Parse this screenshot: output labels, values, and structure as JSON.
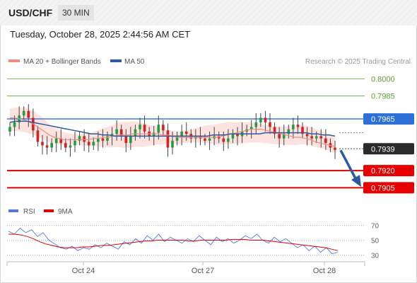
{
  "header": {
    "pair": "USD/CHF",
    "timeframe": "30 MIN"
  },
  "datetime": "Tuesday, October 28, 2025 2:44:56 AM CET",
  "legend": [
    {
      "label": "MA 20 + Bollinger Bands",
      "color": "#f08c80"
    },
    {
      "label": "MA 50",
      "color": "#2c5aa0"
    }
  ],
  "credit": "Research © 2025 Trading Central",
  "chart_data": {
    "type": "line",
    "ylim": [
      0.7896,
      0.8007
    ],
    "x_ticks": [
      "Oct 24",
      "Oct 27",
      "Oct 28"
    ],
    "levels": [
      {
        "value": "0.8000",
        "kind": "resistance",
        "color": "#5aa02c",
        "style": "thin"
      },
      {
        "value": "0.7985",
        "kind": "resistance",
        "color": "#5aa02c",
        "style": "thin"
      },
      {
        "value": "0.7965",
        "kind": "pivot",
        "color": "#2c6fd6",
        "style": "thick"
      },
      {
        "value": "0.7920",
        "kind": "support",
        "color": "#e00000",
        "style": "thick"
      },
      {
        "value": "0.7905",
        "kind": "support",
        "color": "#e00000",
        "style": "thick"
      }
    ],
    "last_price": "0.7939",
    "forecast": {
      "from": 0.7939,
      "to": 0.7907,
      "color": "#2a5aa0"
    },
    "close_series": [
      0.7958,
      0.7962,
      0.7968,
      0.7972,
      0.7966,
      0.7955,
      0.7945,
      0.7942,
      0.794,
      0.7944,
      0.7948,
      0.7944,
      0.794,
      0.7942,
      0.7946,
      0.795,
      0.7945,
      0.7942,
      0.7945,
      0.7948,
      0.7946,
      0.795,
      0.7952,
      0.7956,
      0.795,
      0.7944,
      0.795,
      0.7956,
      0.796,
      0.7954,
      0.795,
      0.7953,
      0.796,
      0.7955,
      0.794,
      0.7946,
      0.795,
      0.7954,
      0.7952,
      0.7948,
      0.795,
      0.7948,
      0.7946,
      0.7948,
      0.795,
      0.7948,
      0.7945,
      0.7948,
      0.7952,
      0.795,
      0.7954,
      0.7956,
      0.7958,
      0.7962,
      0.7966,
      0.7962,
      0.7958,
      0.7952,
      0.7948,
      0.7952,
      0.7956,
      0.796,
      0.7958,
      0.7952,
      0.795,
      0.7948,
      0.795,
      0.7948,
      0.7944,
      0.794,
      0.7938
    ],
    "ma20": [
      0.7966,
      0.7966,
      0.7965,
      0.7964,
      0.7962,
      0.796,
      0.7957,
      0.7954,
      0.7951,
      0.7949,
      0.7948,
      0.7947,
      0.7947,
      0.7947,
      0.7947,
      0.7947,
      0.7947,
      0.7948,
      0.7948,
      0.7949,
      0.7949,
      0.795,
      0.7951,
      0.7951,
      0.7951,
      0.7952,
      0.7952,
      0.7952,
      0.7952,
      0.7952,
      0.7952,
      0.7951,
      0.7951,
      0.795,
      0.7949,
      0.7949,
      0.7949,
      0.7949,
      0.7949,
      0.7949,
      0.7949,
      0.7949,
      0.7949,
      0.795,
      0.7951,
      0.7952,
      0.7953,
      0.7954,
      0.7955,
      0.7956,
      0.7956,
      0.7956,
      0.7955,
      0.7954,
      0.7953,
      0.7952,
      0.7951,
      0.795,
      0.7949,
      0.7949,
      0.7948,
      0.7947,
      0.7945,
      0.7944,
      0.7943,
      0.7942,
      0.7941
    ],
    "ma50": [
      0.7962,
      0.7963,
      0.7963,
      0.7963,
      0.7962,
      0.7961,
      0.796,
      0.7959,
      0.7958,
      0.7957,
      0.7956,
      0.7955,
      0.7954,
      0.7953,
      0.7952,
      0.7952,
      0.7951,
      0.7951,
      0.795,
      0.795,
      0.795,
      0.795,
      0.795,
      0.795,
      0.795,
      0.795,
      0.795,
      0.795,
      0.795,
      0.795,
      0.795,
      0.795,
      0.795,
      0.795,
      0.795,
      0.7951,
      0.7951,
      0.7951,
      0.7952,
      0.7952,
      0.7952,
      0.7952,
      0.7952,
      0.7952,
      0.7953,
      0.7953,
      0.7953,
      0.7953,
      0.7953,
      0.7953,
      0.7953,
      0.7953,
      0.7952,
      0.7952,
      0.7951,
      0.7951,
      0.795
    ],
    "rsi": {
      "legend": [
        {
          "label": "RSI",
          "color": "#5577dd"
        },
        {
          "label": "9MA",
          "color": "#e00000"
        }
      ],
      "ylim": [
        25,
        75
      ],
      "ticks": [
        "70",
        "50",
        "30"
      ],
      "rsi_values": [
        62,
        58,
        66,
        60,
        64,
        55,
        60,
        50,
        45,
        40,
        38,
        42,
        36,
        40,
        38,
        44,
        40,
        46,
        42,
        38,
        48,
        44,
        52,
        46,
        56,
        50,
        58,
        48,
        54,
        50,
        46,
        52,
        48,
        56,
        50,
        44,
        54,
        48,
        52,
        46,
        50,
        56,
        52,
        58,
        50,
        46,
        54,
        48,
        52,
        46,
        40,
        44,
        36,
        42,
        34,
        40,
        32,
        34
      ],
      "ma_values": [
        58,
        58,
        57,
        55,
        52,
        48,
        45,
        43,
        41,
        40,
        40,
        40,
        41,
        41,
        42,
        43,
        43,
        44,
        45,
        46,
        47,
        48,
        49,
        49,
        50,
        50,
        50,
        50,
        50,
        49,
        49,
        50,
        50,
        50,
        50,
        50,
        51,
        51,
        51,
        50,
        50,
        50,
        49,
        48,
        47,
        46,
        45,
        44,
        43,
        42,
        41,
        40,
        38,
        36
      ]
    }
  }
}
